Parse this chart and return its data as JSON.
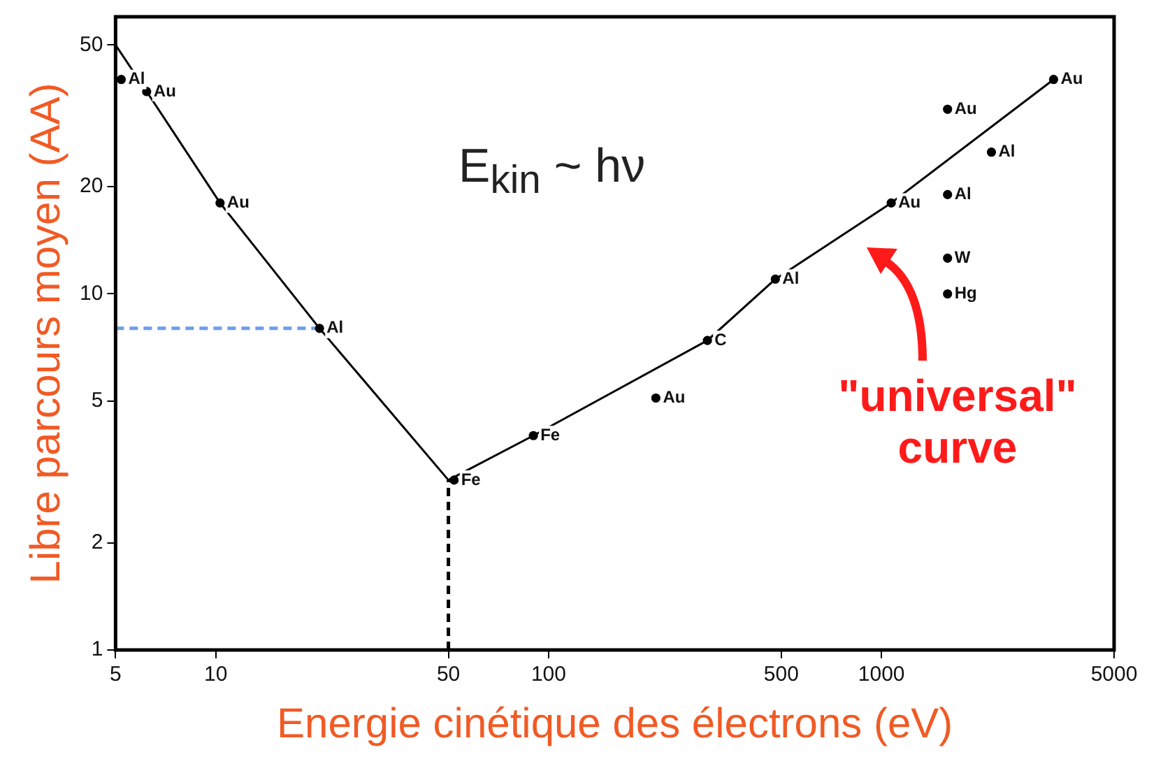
{
  "chart_data": {
    "type": "scatter",
    "xlabel": "Energie cinétique des électrons (eV)",
    "ylabel": "Libre parcours moyen (AA)",
    "log": "xy",
    "xlim": [
      5,
      5000
    ],
    "ylim": [
      1,
      60
    ],
    "xticks": [
      5,
      10,
      50,
      100,
      500,
      1000,
      5000
    ],
    "yticks": [
      1,
      2,
      5,
      10,
      20,
      50
    ],
    "grid": false,
    "legend": false,
    "marker": "circle",
    "series": [
      {
        "type": "scatter",
        "color": "#000000",
        "x": [
          5.2,
          6.2,
          10.3,
          20.5,
          52,
          90,
          210,
          300,
          480,
          1070,
          1580,
          2140,
          1580,
          1580,
          1580,
          3290
        ],
        "values": [
          40,
          37,
          18,
          8,
          3,
          4,
          5.1,
          7.4,
          11,
          18,
          33,
          25,
          19,
          12.6,
          10,
          40
        ]
      },
      {
        "type": "line",
        "color": "#000000",
        "marker": "none",
        "x": [
          5,
          6.2,
          10.3,
          20.5,
          50,
          90,
          300,
          480,
          1070,
          3290
        ],
        "values": [
          50,
          37,
          18,
          8,
          3,
          4,
          7.4,
          11,
          18,
          40
        ]
      },
      {
        "type": "line",
        "color": "#6d9eeb",
        "line_style": "dashed",
        "marker": "none",
        "x": [
          5,
          20.5
        ],
        "values": [
          8,
          8
        ]
      },
      {
        "type": "line",
        "color": "#000000",
        "line_style": "dashed",
        "marker": "none",
        "x": [
          50,
          50
        ],
        "values": [
          1,
          3
        ]
      }
    ],
    "annotations": [
      {
        "text": "Al",
        "x": 5.2,
        "y": 40
      },
      {
        "text": "Au",
        "x": 6.2,
        "y": 37
      },
      {
        "text": "Au",
        "x": 10.3,
        "y": 18
      },
      {
        "text": "Al",
        "x": 20.5,
        "y": 8
      },
      {
        "text": "Fe",
        "x": 52,
        "y": 3
      },
      {
        "text": "Fe",
        "x": 90,
        "y": 4
      },
      {
        "text": "Au",
        "x": 210,
        "y": 5.1
      },
      {
        "text": "C",
        "x": 300,
        "y": 7.4
      },
      {
        "text": "Al",
        "x": 480,
        "y": 11
      },
      {
        "text": "Au",
        "x": 1070,
        "y": 18
      },
      {
        "text": "Au",
        "x": 1580,
        "y": 33
      },
      {
        "text": "Al",
        "x": 2140,
        "y": 25
      },
      {
        "text": "Al",
        "x": 1580,
        "y": 19
      },
      {
        "text": "W",
        "x": 1580,
        "y": 12.6
      },
      {
        "text": "Hg",
        "x": 1580,
        "y": 10
      },
      {
        "text": "Au",
        "x": 3290,
        "y": 40
      },
      "E$_{kin}$ ~ hν",
      "\"universal\" curve"
    ]
  }
}
